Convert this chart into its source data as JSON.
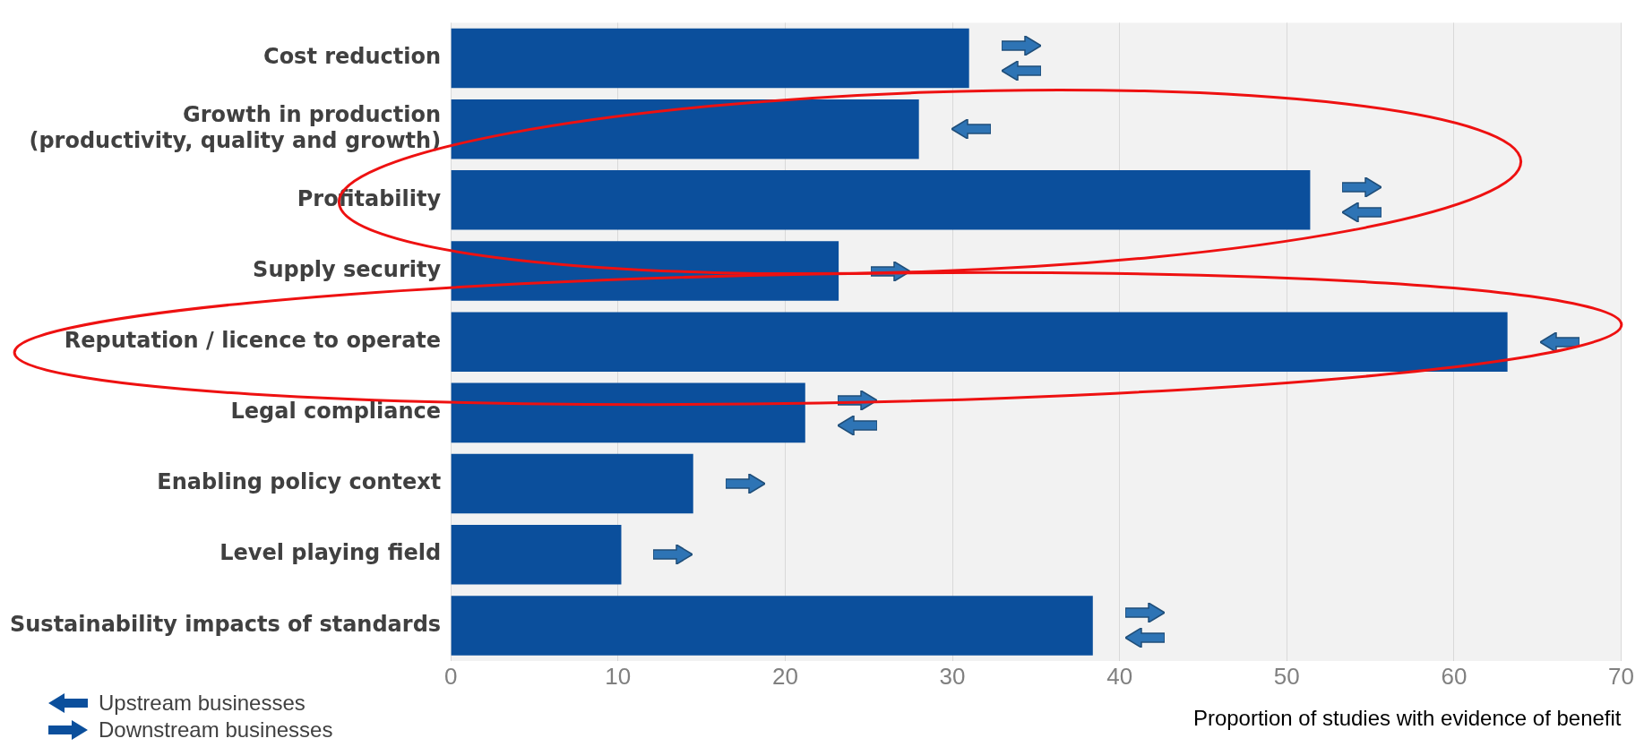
{
  "chart_data": {
    "type": "bar",
    "orientation": "horizontal",
    "categories": [
      "Cost reduction",
      "Growth in production\n(productivity, quality and growth)",
      "Profitability",
      "Supply security",
      "Reputation / licence to operate",
      "Legal compliance",
      "Enabling policy context",
      "Level playing field",
      "Sustainability impacts of standards"
    ],
    "values": [
      31,
      28,
      51.4,
      23.2,
      63.2,
      21.2,
      14.5,
      10.2,
      38.4
    ],
    "color": "#0b4f9c",
    "xlim": [
      0,
      70
    ],
    "xticks": [
      0,
      10,
      20,
      30,
      40,
      50,
      60,
      70
    ],
    "xlabel": "Proportion of studies with evidence of benefit",
    "grid": "x",
    "annotations": [
      "Upstream businesses",
      "Downstream businesses"
    ]
  }
}
